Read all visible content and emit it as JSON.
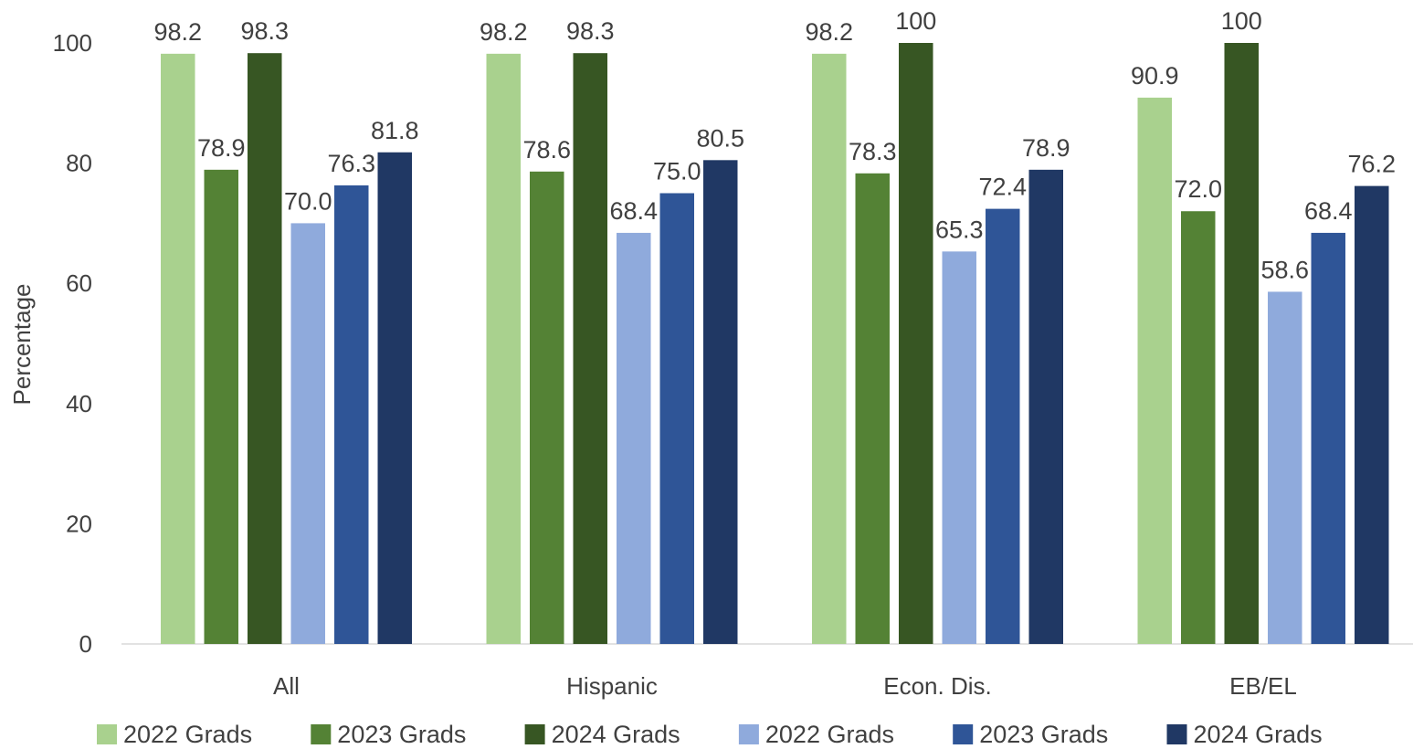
{
  "chart_data": {
    "type": "bar",
    "title": "",
    "xlabel": "",
    "ylabel": "Percentage",
    "ylim": [
      0,
      100
    ],
    "yticks": [
      0,
      20,
      40,
      60,
      80,
      100
    ],
    "grid": false,
    "legend_position": "bottom",
    "categories": [
      "All",
      "Hispanic",
      "Econ. Dis.",
      "EB/EL"
    ],
    "series": [
      {
        "name": "2022 Grads",
        "color": "#a9d18e",
        "values": [
          98.2,
          98.2,
          98.2,
          90.9
        ],
        "labels": [
          "98.2",
          "98.2",
          "98.2",
          "90.9"
        ]
      },
      {
        "name": "2023 Grads",
        "color": "#548235",
        "values": [
          78.9,
          78.6,
          78.3,
          72.0
        ],
        "labels": [
          "78.9",
          "78.6",
          "78.3",
          "72.0"
        ]
      },
      {
        "name": "2024 Grads",
        "color": "#375623",
        "values": [
          98.3,
          98.3,
          100,
          100
        ],
        "labels": [
          "98.3",
          "98.3",
          "100",
          "100"
        ]
      },
      {
        "name": "2022 Grads",
        "color": "#8faadc",
        "values": [
          70.0,
          68.4,
          65.3,
          58.6
        ],
        "labels": [
          "70.0",
          "68.4",
          "65.3",
          "58.6"
        ]
      },
      {
        "name": "2023 Grads",
        "color": "#2f5597",
        "values": [
          76.3,
          75.0,
          72.4,
          68.4
        ],
        "labels": [
          "76.3",
          "75.0",
          "72.4",
          "68.4"
        ]
      },
      {
        "name": "2024 Grads",
        "color": "#203864",
        "values": [
          81.8,
          80.5,
          78.9,
          76.2
        ],
        "labels": [
          "81.8",
          "80.5",
          "78.9",
          "76.2"
        ]
      }
    ]
  }
}
